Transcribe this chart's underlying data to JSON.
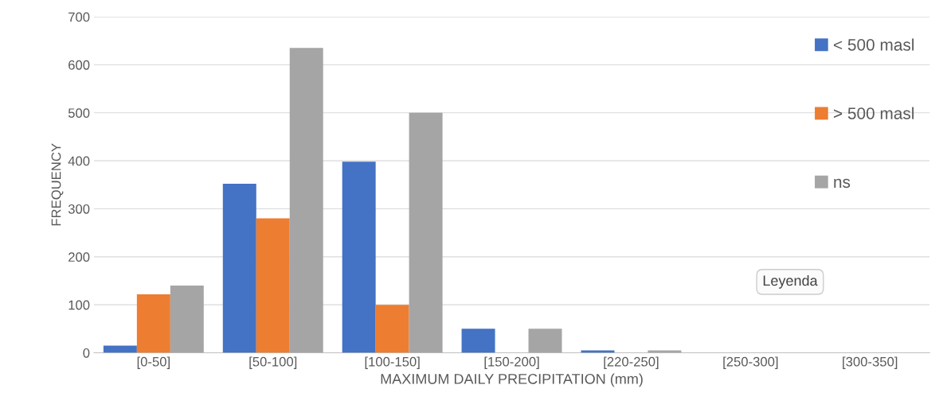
{
  "chart_data": {
    "type": "bar",
    "xlabel": "MAXIMUM DAILY PRECIPITATION (mm)",
    "ylabel": "FREQUENCY",
    "categories": [
      "[0-50]",
      "[50-100]",
      "[100-150]",
      "[150-200]",
      "[220-250]",
      "[250-300]",
      "[300-350]"
    ],
    "series": [
      {
        "name": "< 500 masl",
        "color": "#4472c4",
        "values": [
          15,
          352,
          398,
          50,
          5,
          0,
          0
        ]
      },
      {
        "name": "> 500 masl",
        "color": "#ed7d31",
        "values": [
          122,
          280,
          100,
          0,
          0,
          0,
          0
        ]
      },
      {
        "name": "ns",
        "color": "#a5a5a5",
        "values": [
          140,
          635,
          500,
          50,
          5,
          0,
          0
        ]
      }
    ],
    "ylim": [
      0,
      700
    ],
    "yticks": [
      0,
      100,
      200,
      300,
      400,
      500,
      600,
      700
    ],
    "grid": "y",
    "legend": "right",
    "annotations": [
      "Leyenda"
    ]
  }
}
